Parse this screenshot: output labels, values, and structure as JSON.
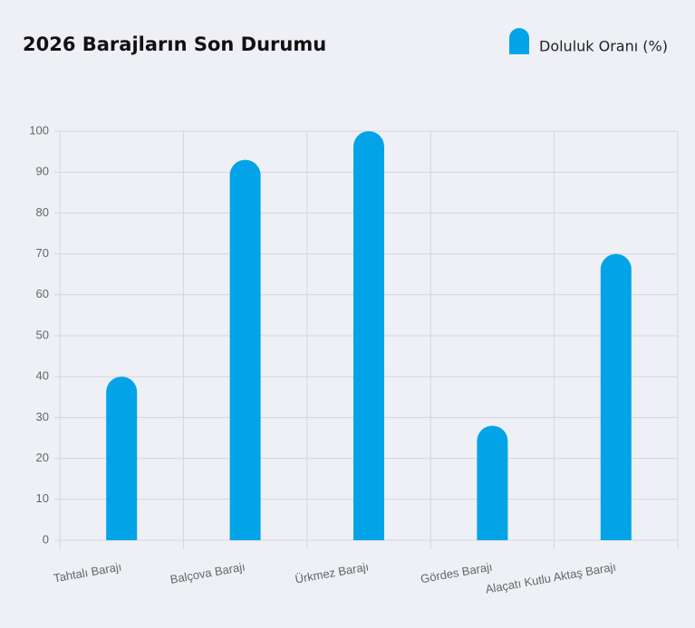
{
  "chart_data": {
    "type": "bar",
    "title": "2026 Barajların Son Durumu",
    "categories": [
      "Tahtalı Barajı",
      "Balçova Barajı",
      "Ürkmez Barajı",
      "Gördes Barajı",
      "Alaçatı Kutlu Aktaş Barajı"
    ],
    "series": [
      {
        "name": "Doluluk Oranı (%)",
        "color": "#03a3e8",
        "values": [
          40,
          93,
          100,
          28,
          70
        ]
      }
    ],
    "ylim": [
      0,
      100
    ],
    "yticks": [
      0,
      10,
      20,
      30,
      40,
      50,
      60,
      70,
      80,
      90,
      100
    ],
    "grid": true,
    "legend": "top-right"
  }
}
